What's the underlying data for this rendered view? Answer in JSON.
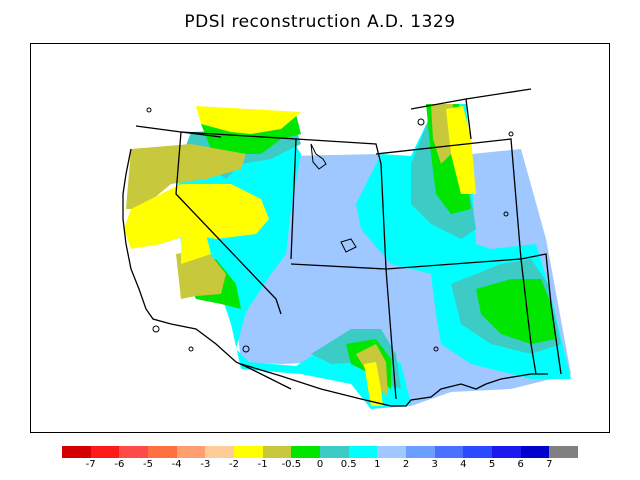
{
  "title": "PDSI reconstruction A.D. 1329",
  "legend": {
    "colors": [
      "#d40000",
      "#ff1a1a",
      "#ff4a4a",
      "#ff7040",
      "#ff9f70",
      "#ffcc99",
      "#ffff00",
      "#c8c83c",
      "#00e600",
      "#3dcbc6",
      "#00ffff",
      "#9ec8ff",
      "#6a9fff",
      "#4a70ff",
      "#2a4aff",
      "#1a1aee",
      "#0000cc",
      "#808080"
    ],
    "tick_labels": [
      "-7",
      "-6",
      "-5",
      "-4",
      "-3",
      "-2",
      "-1",
      "-0.5",
      "0",
      "0.5",
      "1",
      "2",
      "3",
      "4",
      "5",
      "6",
      "7"
    ]
  }
}
